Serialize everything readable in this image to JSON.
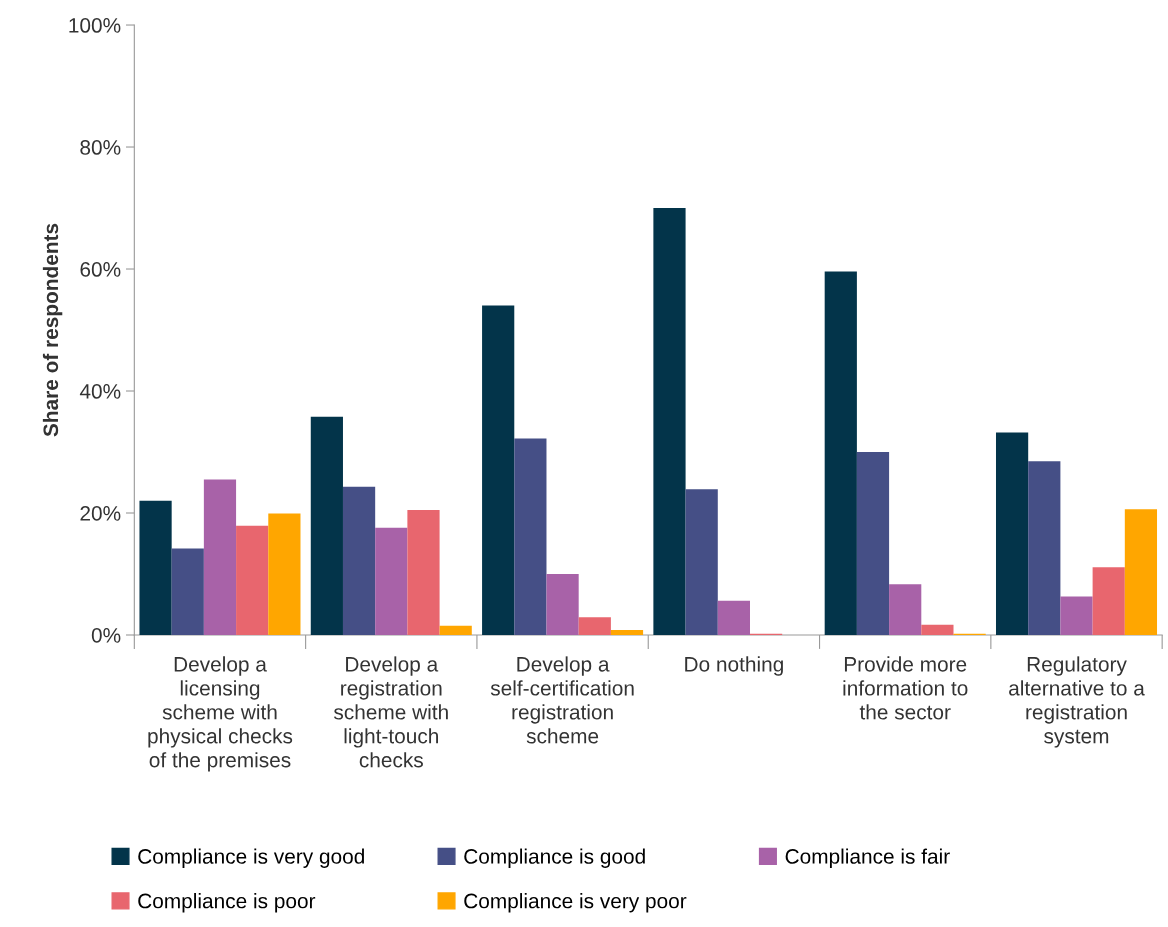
{
  "chart_data": {
    "type": "bar",
    "ylabel": "Share of respondents",
    "categories": [
      "Develop a licensing scheme with physical checks of the premises",
      "Develop a registration scheme with light-touch checks",
      "Develop a self-certification registration scheme",
      "Do nothing",
      "Provide more information to the sector",
      "Regulatory alternative to a registration system"
    ],
    "series": [
      {
        "name": "Compliance is very good",
        "color": "#03344a",
        "values": [
          22.0,
          35.8,
          54.0,
          70.0,
          59.6,
          33.2
        ]
      },
      {
        "name": "Compliance is good",
        "color": "#454f86",
        "values": [
          14.2,
          24.3,
          32.2,
          23.9,
          30.0,
          28.5
        ]
      },
      {
        "name": "Compliance is fair",
        "color": "#a862a8",
        "values": [
          25.5,
          17.6,
          10.0,
          5.6,
          8.3,
          6.3
        ]
      },
      {
        "name": "Compliance is poor",
        "color": "#e8666e",
        "values": [
          17.9,
          20.5,
          2.9,
          0.2,
          1.7,
          11.1
        ]
      },
      {
        "name": "Compliance is very poor",
        "color": "#ffa600",
        "values": [
          19.9,
          1.5,
          0.8,
          null,
          0.2,
          20.6
        ]
      }
    ],
    "ylim": [
      0,
      100
    ],
    "yticks": [
      {
        "value": 0,
        "label": "0%"
      },
      {
        "value": 20,
        "label": "20%"
      },
      {
        "value": 40,
        "label": "40%"
      },
      {
        "value": 60,
        "label": "60%"
      },
      {
        "value": 80,
        "label": "80%"
      },
      {
        "value": 100,
        "label": "100%"
      }
    ],
    "grid": false,
    "legend": "bottom"
  }
}
